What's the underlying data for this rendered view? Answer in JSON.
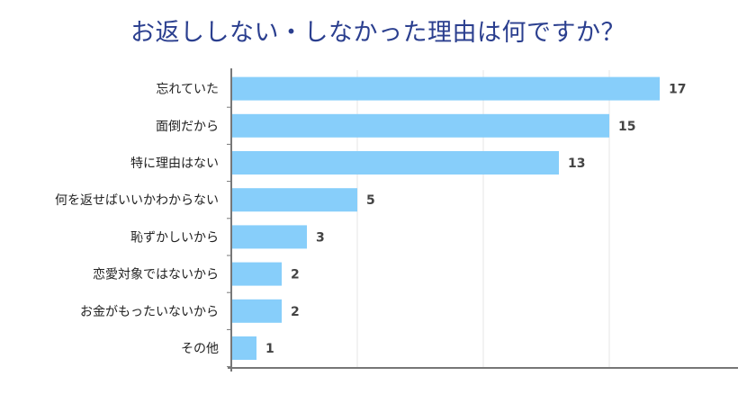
{
  "chart_data": {
    "type": "bar",
    "orientation": "horizontal",
    "title": "お返ししない・しなかった理由は何ですか？",
    "categories": [
      "忘れていた",
      "面倒だから",
      "特に理由はない",
      "何を返せばいいかわからない",
      "恥ずかしいから",
      "恋愛対象ではないから",
      "お金がもったいないから",
      "その他"
    ],
    "values": [
      17,
      15,
      13,
      5,
      3,
      2,
      2,
      1
    ],
    "xlim": [
      0,
      20
    ],
    "gridlines_at": [
      5,
      10,
      15
    ],
    "xlabel": "",
    "ylabel": "",
    "bar_color": "#87cefa",
    "axis_color": "#777777",
    "grid_color": "#e6e6e6",
    "label_color": "#222222",
    "value_label_color": "#444444"
  }
}
